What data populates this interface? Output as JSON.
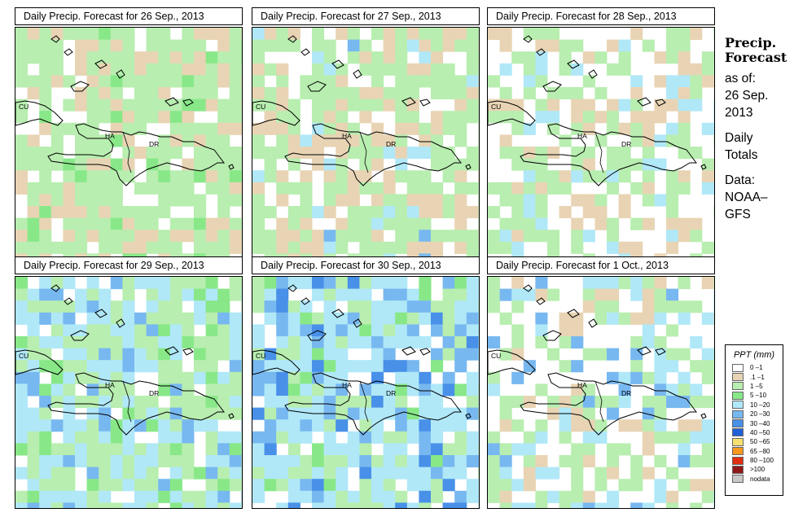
{
  "panels": [
    {
      "title": "Daily Precip. Forecast for  26 Sep., 2013"
    },
    {
      "title": "Daily Precip. Forecast for  27 Sep., 2013"
    },
    {
      "title": "Daily Precip. Forecast for  28 Sep., 2013"
    },
    {
      "title": "Daily Precip. Forecast for  29 Sep., 2013"
    },
    {
      "title": "Daily Precip. Forecast for  30 Sep., 2013"
    },
    {
      "title": "Daily Precip. Forecast for  1 Oct., 2013"
    }
  ],
  "map_labels": {
    "cuba": "CU",
    "haiti": "HA",
    "dominican_republic": "DR"
  },
  "side": {
    "heading_1": "Precip.",
    "heading_2": "Forecast",
    "as_of": "as of:",
    "date_1": "26 Sep.",
    "date_2": "2013",
    "totals_1": "Daily",
    "totals_2": "Totals",
    "data_1": "Data:",
    "data_2": "NOAA–",
    "data_3": "GFS"
  },
  "legend": {
    "title": "PPT (mm)",
    "items": [
      {
        "label": "0 –1",
        "color": "#ffffff"
      },
      {
        "label": ".1 –1",
        "color": "#e8d4b4"
      },
      {
        "label": "1 –5",
        "color": "#b8eeb0"
      },
      {
        "label": "5 –10",
        "color": "#88e888"
      },
      {
        "label": "10 –20",
        "color": "#b0e8f8"
      },
      {
        "label": "20 –30",
        "color": "#78b8f0"
      },
      {
        "label": "30 –40",
        "color": "#4890e8"
      },
      {
        "label": "40 –50",
        "color": "#2060d8"
      },
      {
        "label": "50 –65",
        "color": "#f8e070"
      },
      {
        "label": "65 –80",
        "color": "#f89820"
      },
      {
        "label": "80 –100",
        "color": "#e03010"
      },
      {
        "label": ">100",
        "color": "#901818"
      },
      {
        "label": "nodata",
        "color": "#c8c8c8"
      }
    ]
  }
}
